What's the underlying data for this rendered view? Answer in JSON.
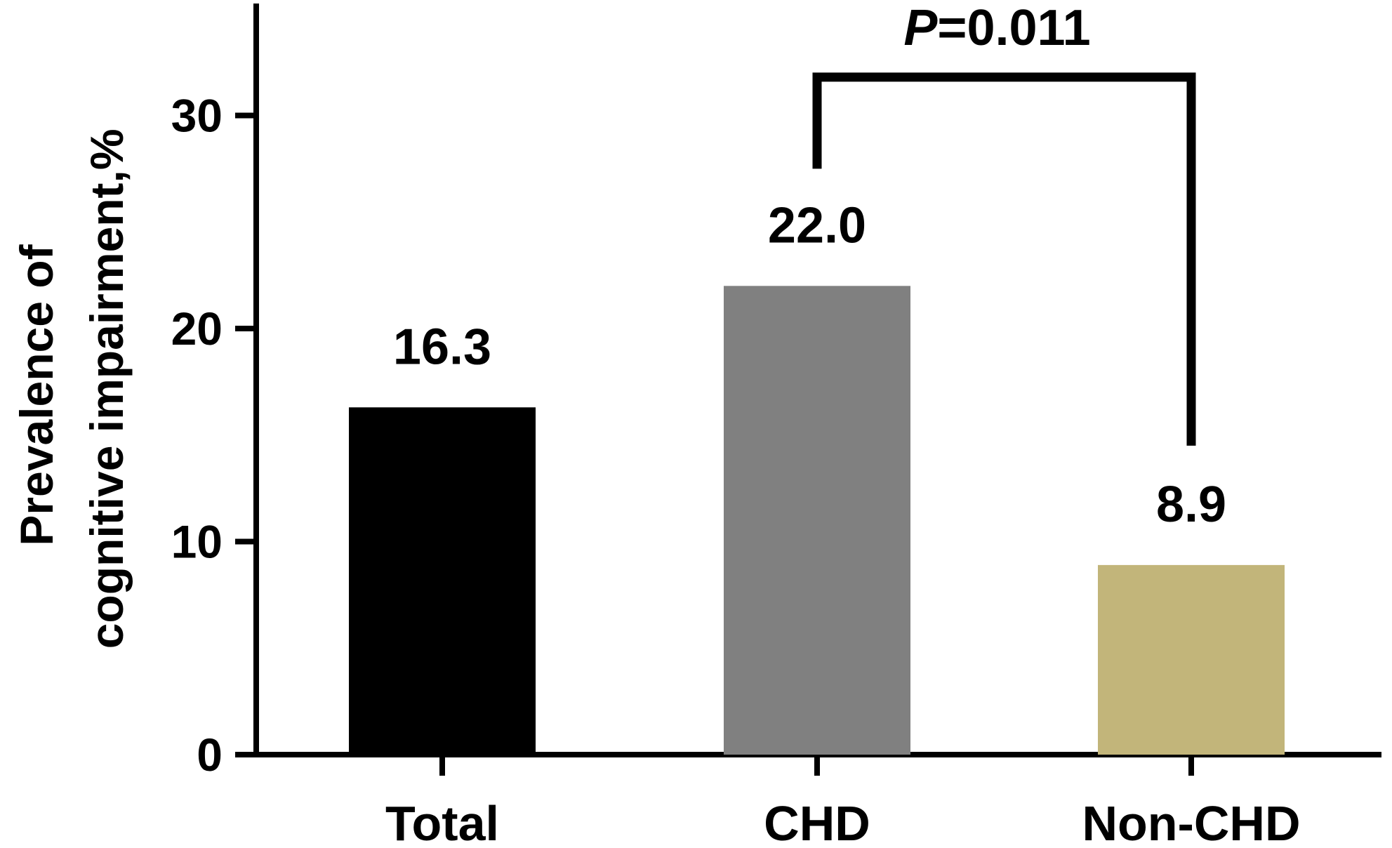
{
  "chart_data": {
    "type": "bar",
    "title": "",
    "xlabel": "",
    "ylabel": {
      "line1": "Prevalence of",
      "line2": "cognitive impairment,%"
    },
    "categories": [
      "Total",
      "CHD",
      "Non-CHD"
    ],
    "values": [
      16.3,
      22.0,
      8.9
    ],
    "value_labels": [
      "16.3",
      "22.0",
      "8.9"
    ],
    "bar_colors": [
      "#000000",
      "#808080",
      "#c2b57a"
    ],
    "ylim": [
      0,
      35
    ],
    "yticks": [
      0,
      10,
      20,
      30
    ],
    "grid": false,
    "legend": "none",
    "annotation": {
      "type": "significance-bracket",
      "from_category": "CHD",
      "to_category": "Non-CHD",
      "p_prefix": "P",
      "p_value": "=0.011",
      "bracket_y": 31.8,
      "from_tick_y": 27.5,
      "to_tick_y": 14.5
    }
  }
}
